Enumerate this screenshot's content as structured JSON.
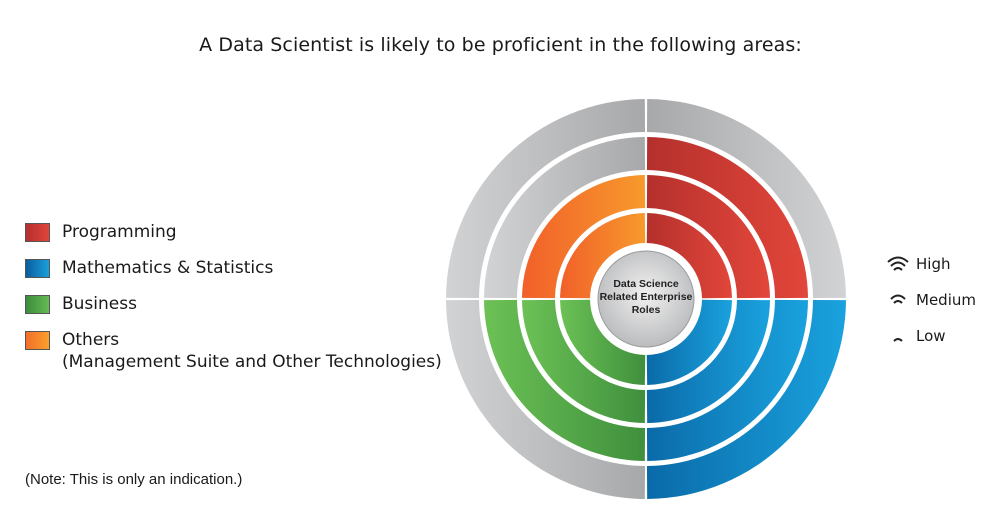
{
  "title": "A Data Scientist is likely to be proficient in the following areas:",
  "legend": [
    {
      "label": "Programming",
      "color": "#d23c32"
    },
    {
      "label": "Mathematics & Statistics",
      "color": "#0e86c6"
    },
    {
      "label": "Business",
      "color": "#55a845"
    },
    {
      "label": "Others",
      "sublabel": "(Management Suite and Other Technologies)",
      "color": "#f7872b"
    }
  ],
  "center_label": [
    "Data Science",
    "Related Enterprise",
    "Roles"
  ],
  "levels": [
    {
      "label": "High",
      "icon": "signal-high-icon"
    },
    {
      "label": "Medium",
      "icon": "signal-medium-icon"
    },
    {
      "label": "Low",
      "icon": "signal-low-icon"
    }
  ],
  "note": "(Note: This is only an indication.)",
  "wheel": {
    "quadrants": [
      {
        "area": "Programming",
        "position": "top-right",
        "level": "Medium",
        "color": "#d23c32"
      },
      {
        "area": "Mathematics & Statistics",
        "position": "bottom-right",
        "level": "High",
        "color": "#0e86c6"
      },
      {
        "area": "Business",
        "position": "bottom-left",
        "level": "Medium",
        "color": "#55a845"
      },
      {
        "area": "Others",
        "position": "top-left",
        "level": "Low",
        "color": "#f7872b"
      }
    ],
    "inactive_color": "#b9babc"
  }
}
